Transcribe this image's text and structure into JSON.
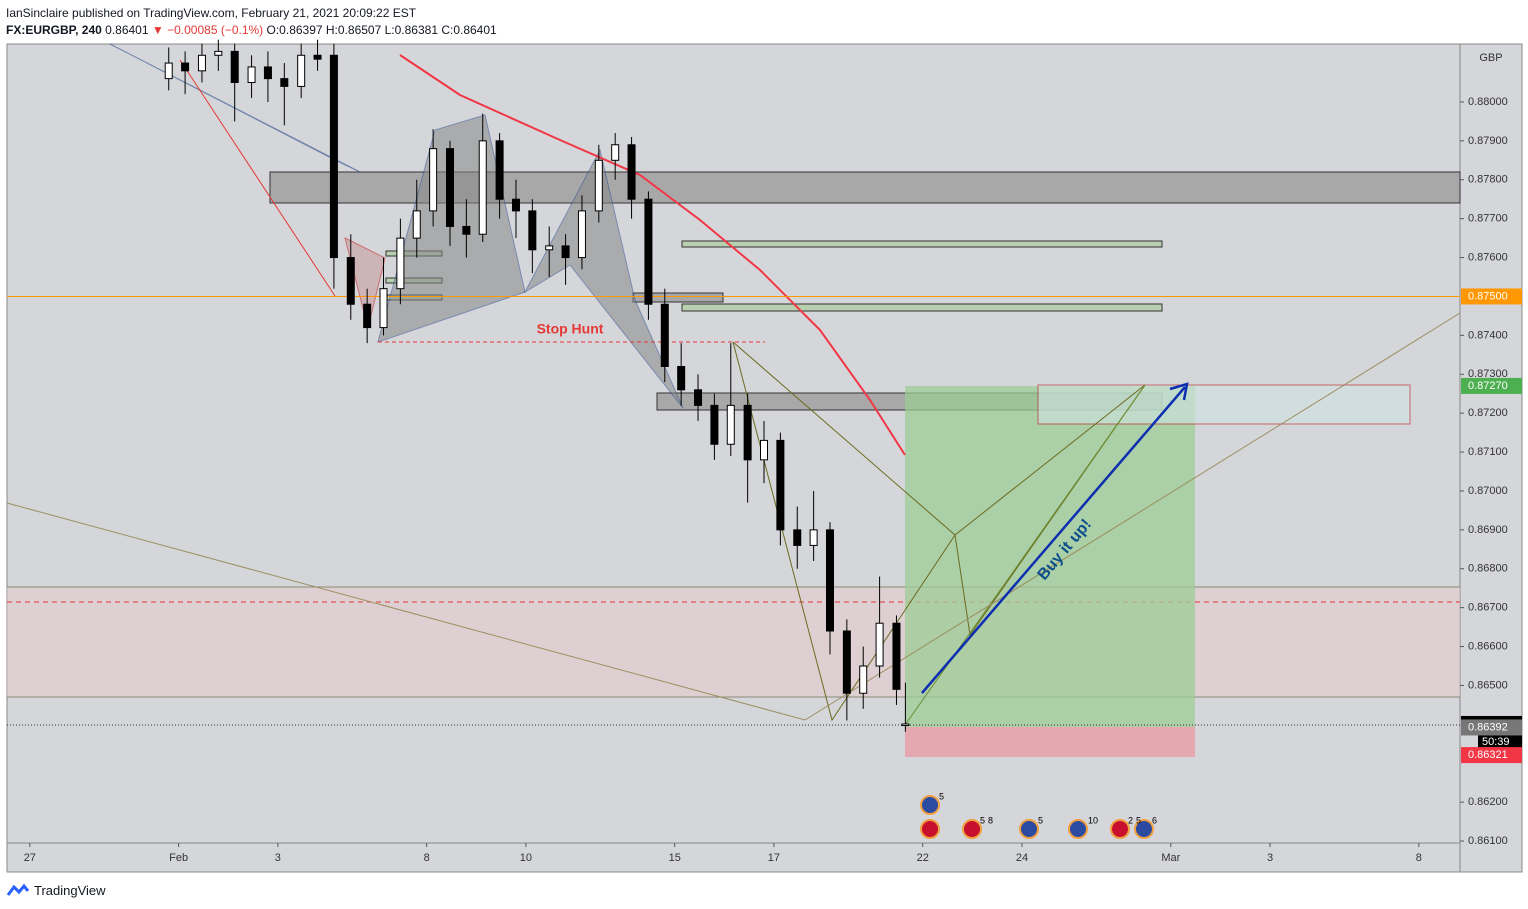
{
  "header": {
    "publisher": "IanSinclaire published on TradingView.com, February 21, 2021 20:09:22 EST",
    "symbol": "FX:EURGBP, 240",
    "last": "0.86401",
    "change": "▼ −0.00085 (−0.1%)",
    "ohlc": "O:0.86397 H:0.86507 L:0.86381 C:0.86401"
  },
  "chart_data": {
    "type": "candlestick",
    "currency": "GBP",
    "x": [
      2.8,
      3.13,
      3.47,
      3.8,
      4.13,
      4.47,
      4.8,
      5.13,
      5.47,
      5.8,
      6.13,
      6.47,
      6.8,
      7.13,
      7.47,
      7.8,
      8.13,
      8.47,
      8.8,
      9.13,
      9.47,
      9.8,
      10.13,
      10.47,
      10.8,
      11.13,
      11.47,
      11.8,
      12.13,
      12.47,
      12.8,
      13.13,
      13.47,
      13.8,
      14.13,
      14.47,
      14.8,
      15.13,
      15.47,
      15.8,
      16.13,
      16.47,
      16.8,
      17.13,
      17.47,
      17.65
    ],
    "open": [
      0.8806,
      0.881,
      0.8808,
      0.8812,
      0.8813,
      0.8805,
      0.8809,
      0.8806,
      0.8804,
      0.8812,
      0.8812,
      0.876,
      0.8748,
      0.8742,
      0.8752,
      0.8765,
      0.8772,
      0.8788,
      0.8768,
      0.8766,
      0.879,
      0.8775,
      0.8772,
      0.8762,
      0.8763,
      0.876,
      0.8772,
      0.8785,
      0.8789,
      0.8775,
      0.8748,
      0.8732,
      0.8726,
      0.8722,
      0.8712,
      0.8722,
      0.8708,
      0.8713,
      0.869,
      0.8686,
      0.869,
      0.8664,
      0.8648,
      0.8655,
      0.8666,
      0.86397
    ],
    "high": [
      0.8814,
      0.8813,
      0.8815,
      0.8816,
      0.8815,
      0.8812,
      0.8813,
      0.881,
      0.8815,
      0.8816,
      0.8815,
      0.8766,
      0.8752,
      0.876,
      0.877,
      0.878,
      0.8793,
      0.879,
      0.8775,
      0.8797,
      0.8792,
      0.878,
      0.8775,
      0.8768,
      0.8766,
      0.8776,
      0.8789,
      0.8792,
      0.8791,
      0.8777,
      0.8752,
      0.8738,
      0.873,
      0.8725,
      0.8738,
      0.8725,
      0.8718,
      0.8715,
      0.8696,
      0.87,
      0.8692,
      0.8667,
      0.866,
      0.8678,
      0.8668,
      0.86507
    ],
    "low": [
      0.8803,
      0.8802,
      0.8805,
      0.8808,
      0.8795,
      0.8801,
      0.88,
      0.8794,
      0.8801,
      0.8808,
      0.8752,
      0.8744,
      0.8738,
      0.874,
      0.8748,
      0.876,
      0.8768,
      0.8763,
      0.876,
      0.8764,
      0.877,
      0.8765,
      0.8756,
      0.8755,
      0.8753,
      0.8757,
      0.8769,
      0.878,
      0.877,
      0.8744,
      0.8728,
      0.8722,
      0.8718,
      0.8708,
      0.8709,
      0.8697,
      0.8702,
      0.8686,
      0.868,
      0.8682,
      0.8658,
      0.8641,
      0.8644,
      0.8652,
      0.8645,
      0.86381
    ],
    "close": [
      0.881,
      0.8808,
      0.8812,
      0.8813,
      0.8805,
      0.8809,
      0.8806,
      0.8804,
      0.8812,
      0.8811,
      0.876,
      0.8748,
      0.8742,
      0.8752,
      0.8765,
      0.8772,
      0.8788,
      0.8768,
      0.8766,
      0.879,
      0.8775,
      0.8772,
      0.8762,
      0.8763,
      0.876,
      0.8772,
      0.8785,
      0.8789,
      0.8775,
      0.8748,
      0.8732,
      0.8726,
      0.8722,
      0.8712,
      0.8722,
      0.8708,
      0.8713,
      0.869,
      0.8686,
      0.869,
      0.8664,
      0.8648,
      0.8655,
      0.8666,
      0.8649,
      0.86401
    ],
    "up_color": "#ffffff",
    "down_color": "#000000",
    "xlim": [
      -0.46,
      28.83
    ],
    "xticks": [
      {
        "value": 0,
        "label": "27"
      },
      {
        "value": 3,
        "label": "Feb"
      },
      {
        "value": 5,
        "label": "3"
      },
      {
        "value": 8,
        "label": "8"
      },
      {
        "value": 10,
        "label": "10"
      },
      {
        "value": 13,
        "label": "15"
      },
      {
        "value": 15,
        "label": "17"
      },
      {
        "value": 18,
        "label": "22"
      },
      {
        "value": 20,
        "label": "24"
      },
      {
        "value": 23,
        "label": "Mar"
      },
      {
        "value": 25,
        "label": "3"
      },
      {
        "value": 28,
        "label": "8"
      }
    ],
    "ylim": [
      0.86095,
      0.88149
    ],
    "yticks": [
      {
        "value": 0.88,
        "label": "0.88000"
      },
      {
        "value": 0.879,
        "label": "0.87900"
      },
      {
        "value": 0.878,
        "label": "0.87800"
      },
      {
        "value": 0.877,
        "label": "0.87700"
      },
      {
        "value": 0.876,
        "label": "0.87600"
      },
      {
        "value": 0.874,
        "label": "0.87400"
      },
      {
        "value": 0.873,
        "label": "0.87300"
      },
      {
        "value": 0.872,
        "label": "0.87200"
      },
      {
        "value": 0.871,
        "label": "0.87100"
      },
      {
        "value": 0.87,
        "label": "0.87000"
      },
      {
        "value": 0.869,
        "label": "0.86900"
      },
      {
        "value": 0.868,
        "label": "0.86800"
      },
      {
        "value": 0.867,
        "label": "0.86700"
      },
      {
        "value": 0.866,
        "label": "0.86600"
      },
      {
        "value": 0.865,
        "label": "0.86500"
      },
      {
        "value": 0.862,
        "label": "0.86200"
      },
      {
        "value": 0.861,
        "label": "0.86100"
      }
    ],
    "price_labels": [
      {
        "value": 0.875,
        "label": "0.87500",
        "color": "#ff9800"
      },
      {
        "value": 0.8727,
        "label": "0.87270",
        "color": "#4caf50"
      },
      {
        "value": 0.86401,
        "label": "0.86401",
        "color": "#000000"
      },
      {
        "value": 0.86392,
        "label": "0.86392",
        "color": "#777777"
      },
      {
        "value": 0.86321,
        "label": "0.86321",
        "color": "#f23645"
      }
    ],
    "countdown": "50:39",
    "annotations": [
      "Stop Hunt",
      "Buy it up!"
    ],
    "events": [
      "5",
      "5",
      "8",
      "5",
      "10",
      "2",
      "5",
      "6"
    ]
  },
  "footer": "TradingView"
}
